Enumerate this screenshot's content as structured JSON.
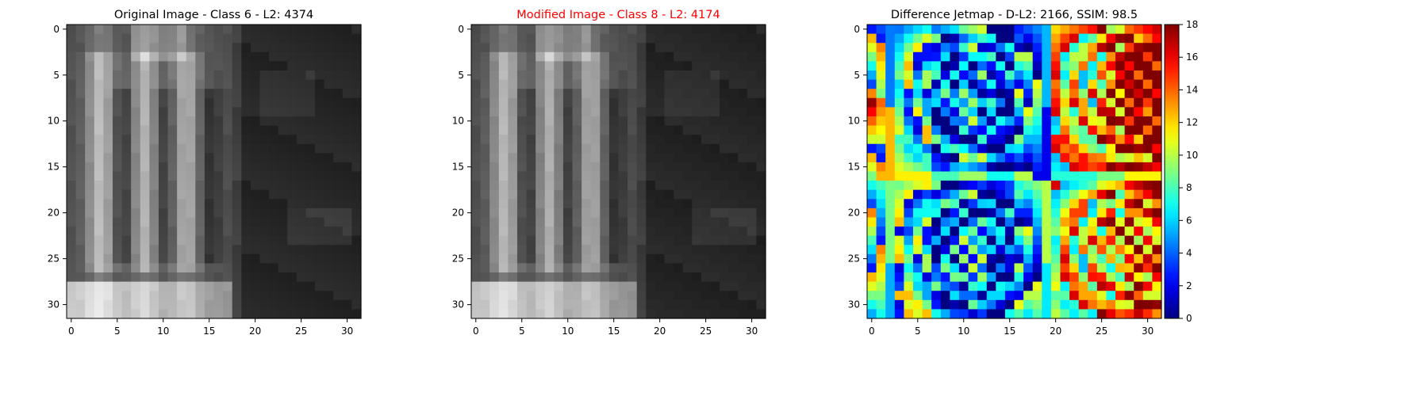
{
  "figure": {
    "panels": [
      {
        "title": "Original Image - Class 6 - L2: 4374",
        "title_color": "#000000",
        "colormap": "gray"
      },
      {
        "title": "Modified Image - Class 8 - L2: 4174",
        "title_color": "#ff0000",
        "colormap": "gray"
      },
      {
        "title": "Difference Jetmap - D-L2: 2166, SSIM: 98.5",
        "title_color": "#000000",
        "colormap": "jet",
        "colorbar": {
          "min": 0,
          "max": 18,
          "ticks": [
            "0",
            "2",
            "4",
            "6",
            "8",
            "10",
            "12",
            "14",
            "16",
            "18"
          ]
        }
      }
    ]
  },
  "chart_data": [
    {
      "type": "heatmap",
      "title": "Original Image - Class 6 - L2: 4374",
      "colormap": "gray",
      "xlim": [
        0,
        31
      ],
      "ylim": [
        31,
        0
      ],
      "xticks": [
        "0",
        "5",
        "10",
        "15",
        "20",
        "25",
        "30"
      ],
      "yticks": [
        "0",
        "5",
        "10",
        "15",
        "20",
        "25",
        "30"
      ],
      "grid": false,
      "legend": "none"
    },
    {
      "type": "heatmap",
      "title": "Modified Image - Class 8 - L2: 4174",
      "colormap": "gray",
      "xlim": [
        0,
        31
      ],
      "ylim": [
        31,
        0
      ],
      "xticks": [
        "0",
        "5",
        "10",
        "15",
        "20",
        "25",
        "30"
      ],
      "yticks": [
        "0",
        "5",
        "10",
        "15",
        "20",
        "25",
        "30"
      ],
      "grid": false,
      "legend": "none"
    },
    {
      "type": "heatmap",
      "title": "Difference Jetmap - D-L2: 2166, SSIM: 98.5",
      "colormap": "jet",
      "zlim": [
        0,
        18
      ],
      "xlim": [
        0,
        31
      ],
      "ylim": [
        31,
        0
      ],
      "xticks": [
        "0",
        "5",
        "10",
        "15",
        "20",
        "25",
        "30"
      ],
      "yticks": [
        "0",
        "5",
        "10",
        "15",
        "20",
        "25",
        "30"
      ],
      "grid": false,
      "legend": "colorbar-right"
    }
  ]
}
